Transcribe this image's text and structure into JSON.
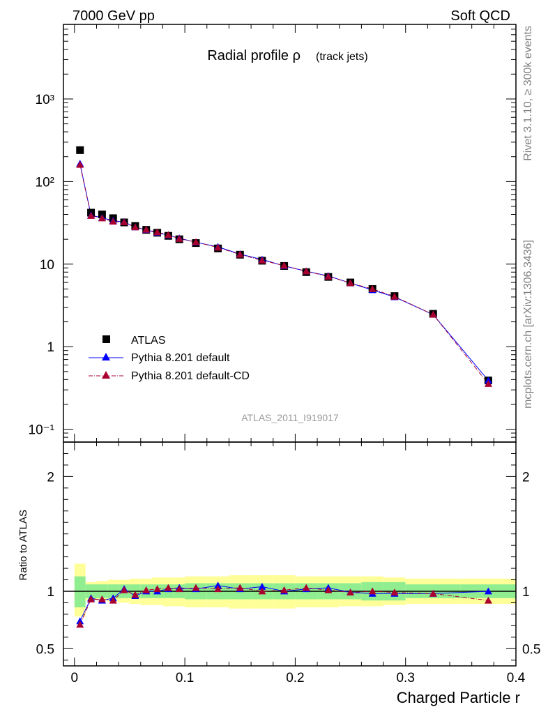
{
  "header": {
    "left": "7000 GeV pp",
    "right": "Soft QCD"
  },
  "side_labels": {
    "rivet": "Rivet 3.1.10, ≥ 300k events",
    "mcplots": "mcplots.cern.ch [arXiv:1306.3436]"
  },
  "chart_data": [
    {
      "type": "scatter",
      "title": "Radial profile ρ",
      "title_suffix": "(track jets)",
      "analysis_label": "ATLAS_2011_I919017",
      "xlim": [
        -0.01,
        0.4
      ],
      "ylim": [
        0.07,
        8000
      ],
      "yscale": "log",
      "ytick_labels": [
        "10⁻¹",
        "1",
        "10",
        "10²",
        "10³"
      ],
      "legend_position": "bottom-left",
      "series": [
        {
          "name": "ATLAS",
          "color": "#000000",
          "marker": "square",
          "x": [
            0.005,
            0.015,
            0.025,
            0.035,
            0.045,
            0.055,
            0.065,
            0.075,
            0.085,
            0.095,
            0.11,
            0.13,
            0.15,
            0.17,
            0.19,
            0.21,
            0.23,
            0.25,
            0.27,
            0.29,
            0.325,
            0.375
          ],
          "y": [
            240,
            42,
            40,
            36,
            32,
            29,
            26,
            24,
            22,
            20,
            18,
            15.5,
            13,
            11,
            9.5,
            8,
            7,
            6,
            5,
            4.1,
            2.5,
            0.39
          ]
        },
        {
          "name": "Pythia 8.201 default",
          "color": "#0000ff",
          "marker": "triangle",
          "x": [
            0.005,
            0.015,
            0.025,
            0.035,
            0.045,
            0.055,
            0.065,
            0.075,
            0.085,
            0.095,
            0.11,
            0.13,
            0.15,
            0.17,
            0.19,
            0.21,
            0.23,
            0.25,
            0.27,
            0.29,
            0.325,
            0.375
          ],
          "y": [
            165,
            39,
            36.5,
            33.5,
            32.5,
            28,
            26,
            24,
            22.4,
            20.6,
            18.4,
            16.2,
            13.2,
            11.4,
            9.5,
            8.2,
            7.2,
            5.9,
            4.85,
            4.0,
            2.45,
            0.39
          ]
        },
        {
          "name": "Pythia 8.201 default-CD",
          "color": "#aa0030",
          "marker": "triangle",
          "x": [
            0.005,
            0.015,
            0.025,
            0.035,
            0.045,
            0.055,
            0.065,
            0.075,
            0.085,
            0.095,
            0.11,
            0.13,
            0.15,
            0.17,
            0.19,
            0.21,
            0.23,
            0.25,
            0.27,
            0.29,
            0.325,
            0.375
          ],
          "y": [
            160,
            38.5,
            36,
            32.8,
            32.2,
            28,
            26.2,
            24.4,
            22.6,
            20.3,
            18.5,
            15.9,
            13.1,
            11.1,
            9.6,
            8.2,
            7.1,
            5.9,
            5.0,
            4.05,
            2.45,
            0.355
          ]
        }
      ]
    },
    {
      "type": "scatter",
      "xlabel": "Charged Particle r",
      "ylabel": "Ratio to ATLAS",
      "xlim": [
        -0.01,
        0.4
      ],
      "ylim": [
        0.35,
        2.3
      ],
      "xticks": [
        0,
        0.1,
        0.2,
        0.3,
        0.4
      ],
      "xtick_labels": [
        "0",
        "0.1",
        "0.2",
        "0.3",
        "0.4"
      ],
      "yticks": [
        0.5,
        1,
        2
      ],
      "ytick_labels": [
        "0.5",
        "1",
        "2"
      ],
      "reference_line": 1,
      "bands": {
        "edges": [
          0.0,
          0.01,
          0.02,
          0.03,
          0.04,
          0.05,
          0.06,
          0.07,
          0.08,
          0.09,
          0.1,
          0.12,
          0.14,
          0.16,
          0.18,
          0.2,
          0.22,
          0.24,
          0.26,
          0.28,
          0.3,
          0.35,
          0.4
        ],
        "stat_color": "#90ee90",
        "total_color": "#ffff99",
        "stat_low": [
          0.86,
          0.94,
          0.94,
          0.94,
          0.94,
          0.94,
          0.94,
          0.94,
          0.94,
          0.94,
          0.93,
          0.93,
          0.93,
          0.93,
          0.93,
          0.93,
          0.93,
          0.93,
          0.92,
          0.92,
          0.94,
          0.94
        ],
        "stat_high": [
          1.13,
          1.06,
          1.06,
          1.06,
          1.06,
          1.06,
          1.06,
          1.06,
          1.06,
          1.06,
          1.07,
          1.07,
          1.07,
          1.07,
          1.07,
          1.07,
          1.07,
          1.07,
          1.08,
          1.08,
          1.06,
          1.06
        ],
        "total_low": [
          0.78,
          0.92,
          0.92,
          0.91,
          0.9,
          0.89,
          0.88,
          0.88,
          0.87,
          0.87,
          0.86,
          0.86,
          0.85,
          0.85,
          0.85,
          0.86,
          0.86,
          0.87,
          0.87,
          0.88,
          0.89,
          0.89
        ],
        "total_high": [
          1.24,
          1.08,
          1.09,
          1.1,
          1.1,
          1.11,
          1.11,
          1.12,
          1.12,
          1.12,
          1.13,
          1.13,
          1.14,
          1.14,
          1.14,
          1.13,
          1.13,
          1.13,
          1.13,
          1.12,
          1.11,
          1.11
        ]
      },
      "series": [
        {
          "name": "Pythia 8.201 default",
          "color": "#0000ff",
          "marker": "triangle",
          "x": [
            0.005,
            0.015,
            0.025,
            0.035,
            0.045,
            0.055,
            0.065,
            0.075,
            0.085,
            0.095,
            0.11,
            0.13,
            0.15,
            0.17,
            0.19,
            0.21,
            0.23,
            0.25,
            0.27,
            0.29,
            0.325,
            0.375
          ],
          "y": [
            0.74,
            0.94,
            0.92,
            0.94,
            1.02,
            0.96,
            1.0,
            1.0,
            1.02,
            1.03,
            1.02,
            1.05,
            1.02,
            1.04,
            1.0,
            1.02,
            1.03,
            0.99,
            0.98,
            0.98,
            0.98,
            1.0
          ]
        },
        {
          "name": "Pythia 8.201 default-CD",
          "color": "#aa0030",
          "marker": "triangle",
          "x": [
            0.005,
            0.015,
            0.025,
            0.035,
            0.045,
            0.055,
            0.065,
            0.075,
            0.085,
            0.095,
            0.11,
            0.13,
            0.15,
            0.17,
            0.19,
            0.21,
            0.23,
            0.25,
            0.27,
            0.29,
            0.325,
            0.375
          ],
          "y": [
            0.71,
            0.93,
            0.93,
            0.92,
            1.01,
            0.97,
            1.01,
            1.02,
            1.03,
            1.02,
            1.03,
            1.02,
            1.03,
            1.0,
            1.01,
            1.03,
            1.01,
            0.99,
            1.0,
            0.99,
            0.98,
            0.92
          ]
        }
      ]
    }
  ]
}
